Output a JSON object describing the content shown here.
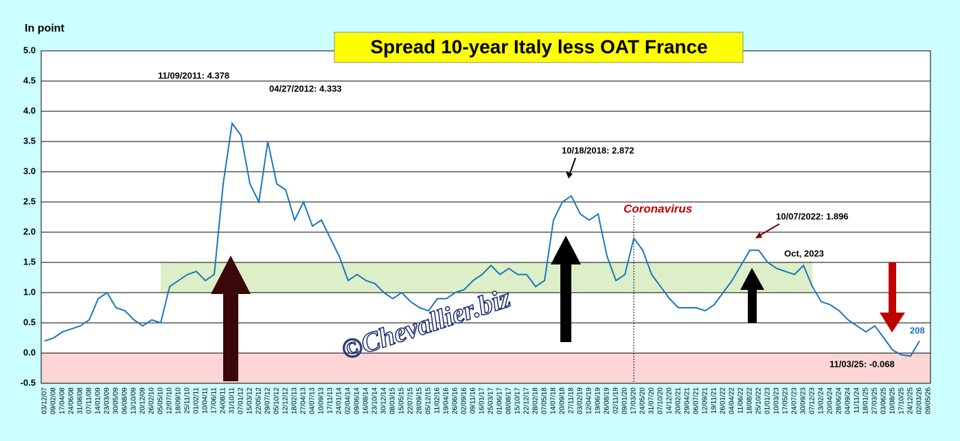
{
  "chart_data": {
    "type": "line",
    "title": "Spread 10-year Italy less OAT France",
    "y_label": "In point",
    "categories": [
      "03/12/07",
      "09/02/08",
      "17/04/08",
      "24/06/08",
      "31/08/08",
      "07/11/08",
      "14/01/09",
      "23/03/09",
      "30/05/09",
      "06/08/09",
      "13/10/09",
      "20/12/09",
      "26/02/10",
      "05/05/10",
      "12/07/10",
      "18/09/10",
      "25/11/10",
      "01/02/11",
      "10/04/11",
      "17/06/11",
      "24/08/11",
      "31/10/11",
      "07/01/12",
      "15/03/12",
      "22/05/12",
      "29/07/12",
      "05/10/12",
      "12/12/12",
      "18/02/13",
      "27/04/13",
      "04/07/13",
      "10/09/13",
      "17/11/13",
      "24/01/14",
      "02/04/14",
      "09/06/14",
      "16/08/14",
      "23/10/14",
      "30/12/14",
      "08/03/15",
      "15/05/15",
      "22/07/15",
      "28/09/15",
      "05/12/15",
      "11/02/16",
      "19/04/16",
      "26/06/16",
      "02/09/16",
      "09/11/16",
      "16/01/17",
      "25/03/17",
      "01/06/17",
      "08/08/17",
      "15/10/17",
      "22/12/17",
      "28/02/18",
      "07/05/18",
      "14/07/18",
      "20/09/18",
      "27/11/18",
      "03/02/19",
      "12/04/19",
      "19/06/19",
      "26/08/19",
      "02/11/19",
      "09/01/20",
      "17/03/20",
      "24/05/20",
      "31/07/20",
      "07/10/20",
      "14/12/20",
      "20/02/21",
      "29/04/21",
      "06/07/21",
      "12/09/21",
      "19/11/21",
      "26/01/22",
      "04/04/22",
      "11/06/22",
      "18/08/22",
      "25/10/22",
      "01/01/23",
      "10/03/23",
      "17/05/23",
      "24/07/23",
      "30/09/23",
      "07/12/23",
      "13/02/24",
      "20/04/24",
      "28/06/24",
      "04/09/24",
      "11/11/24",
      "18/01/25",
      "27/03/25",
      "03/06/25",
      "10/08/25",
      "17/10/25",
      "24/12/25",
      "02/03/26",
      "09/05/26"
    ],
    "series": [
      {
        "name": "Spread",
        "color": "#1a75bb",
        "values": [
          0.2,
          0.25,
          0.35,
          0.4,
          0.45,
          0.55,
          0.9,
          1.0,
          0.75,
          0.7,
          0.55,
          0.45,
          0.55,
          0.5,
          1.1,
          1.2,
          1.3,
          1.35,
          1.2,
          1.3,
          2.8,
          3.8,
          3.6,
          2.8,
          2.5,
          3.5,
          2.8,
          2.7,
          2.2,
          2.5,
          2.1,
          2.2,
          1.9,
          1.6,
          1.2,
          1.3,
          1.2,
          1.15,
          1.0,
          0.9,
          1.0,
          0.85,
          0.75,
          0.7,
          0.9,
          0.9,
          1.0,
          1.05,
          1.2,
          1.3,
          1.45,
          1.3,
          1.4,
          1.3,
          1.3,
          1.1,
          1.2,
          2.2,
          2.5,
          2.6,
          2.3,
          2.2,
          2.3,
          1.6,
          1.2,
          1.3,
          1.9,
          1.7,
          1.3,
          1.1,
          0.9,
          0.75,
          0.75,
          0.75,
          0.7,
          0.8,
          1.0,
          1.2,
          1.45,
          1.7,
          1.7,
          1.5,
          1.4,
          1.35,
          1.3,
          1.45,
          1.1,
          0.85,
          0.8,
          0.7,
          0.55,
          0.45,
          0.35,
          0.45,
          0.25,
          0.05,
          -0.03,
          -0.05,
          0.2,
          null
        ]
      }
    ],
    "ylim": [
      -0.5,
      5
    ],
    "yticks": [
      {
        "value": 5,
        "label": "5.0"
      },
      4.5,
      {
        "value": 4,
        "label": "4.0"
      },
      3.5,
      {
        "value": 3,
        "label": "3.0"
      },
      2.5,
      {
        "value": 2,
        "label": "2.0"
      },
      1.5,
      {
        "value": 1,
        "label": "1.0"
      },
      0.5,
      {
        "value": 0,
        "label": "0.0"
      },
      -0.5
    ],
    "grid": true,
    "bands": [
      {
        "y": [
          1,
          1.5
        ],
        "x": [
          "05/05/10",
          "07/12/23"
        ],
        "color": "#dcefc8"
      },
      {
        "y": [
          -0.5,
          0
        ],
        "color": "#fcd5d5"
      }
    ],
    "vline": "17/03/20",
    "annotations": [
      "11/09/2011: 4.378",
      "04/27/2012: 4.333",
      "10/18/2018: 2.872",
      "Coronavirus",
      "10/07/2022: 1.896",
      "Oct, 2023",
      "11/03/25: -0.068",
      "208",
      "©Chevallier.biz"
    ]
  }
}
